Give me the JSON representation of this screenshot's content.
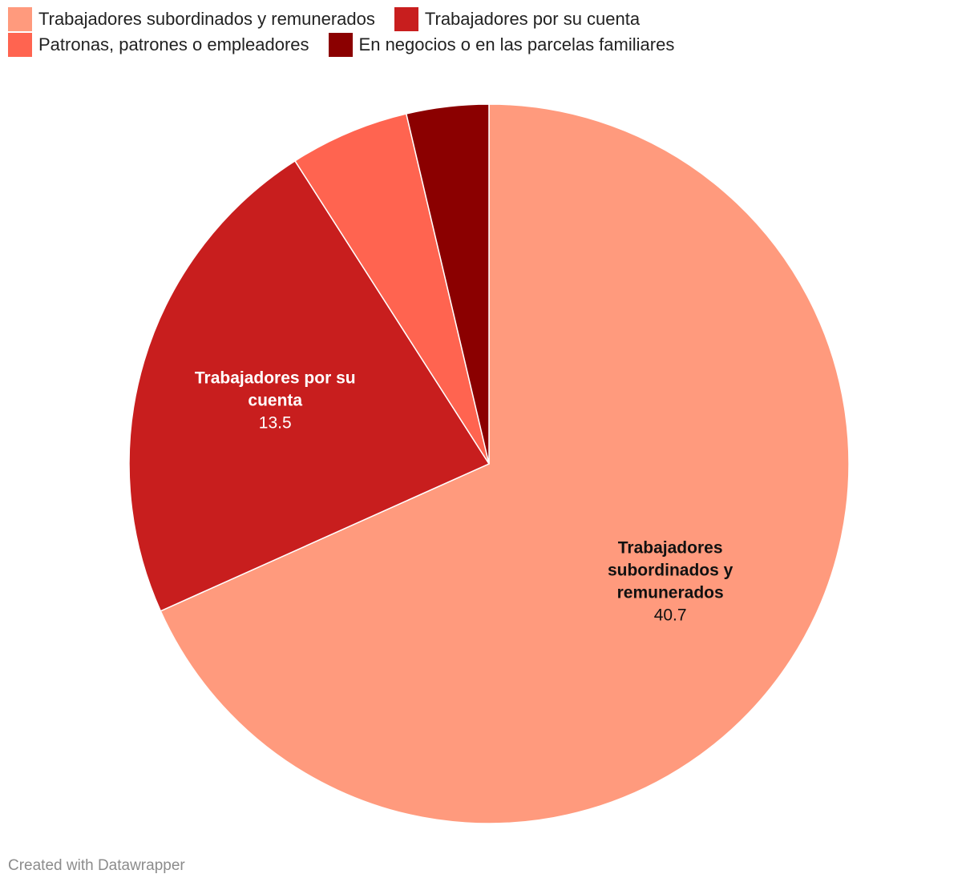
{
  "chart_data": {
    "type": "pie",
    "categories": [
      "Trabajadores subordinados y remunerados",
      "Trabajadores por su cuenta",
      "Patronas, patrones o empleadores",
      "En negocios o en las parcelas familiares"
    ],
    "values": [
      40.7,
      13.5,
      3.2,
      2.2
    ],
    "colors": [
      "#ff9a7d",
      "#c81e1e",
      "#ff6450",
      "#8b0000"
    ],
    "data_labels": [
      {
        "name": "Trabajadores subordinados y remunerados",
        "value": "40.7",
        "color": "#111111"
      },
      {
        "name": "Trabajadores por su cuenta",
        "value": "13.5",
        "color": "#ffffff"
      },
      null,
      null
    ],
    "legend": {
      "placement": "top-left",
      "items": [
        "Trabajadores subordinados y remunerados",
        "Trabajadores por su cuenta",
        "Patronas, patrones o empleadores",
        "En negocios o en las parcelas familiares"
      ]
    }
  },
  "footer": {
    "credit": "Created with Datawrapper"
  }
}
